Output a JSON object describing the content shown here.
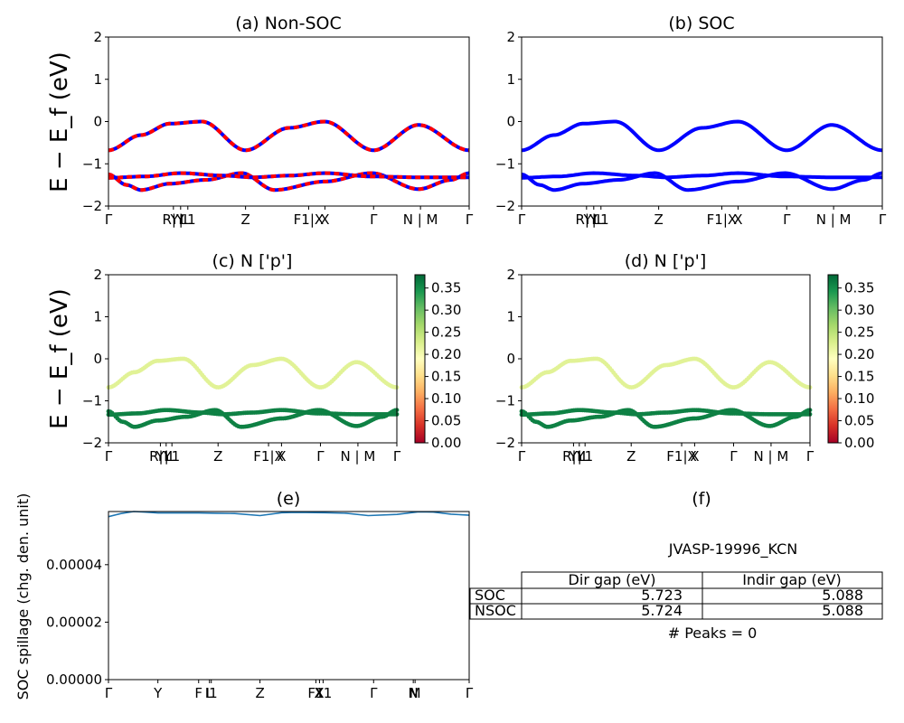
{
  "chart_data": [
    {
      "id": "a",
      "type": "line",
      "title": "(a) Non-SOC",
      "ylabel": "E − E_f (eV)",
      "ylim": [
        -2,
        2
      ],
      "yticks": [
        "−2",
        "−1",
        "0",
        "1",
        "2"
      ],
      "xticks": [
        "Γ",
        "R|Y",
        "Y|L",
        "L1",
        "Z",
        "F1|X",
        "X",
        "Γ",
        "N | M",
        "Γ"
      ],
      "series_colors": [
        "#ff0000",
        "#0000ff"
      ],
      "band_colors": {
        "valence": "#ff0000",
        "core": "#ff0000"
      }
    },
    {
      "id": "b",
      "type": "line",
      "title": "(b) SOC",
      "ylim": [
        -2,
        2
      ],
      "yticks": [
        "−2",
        "−1",
        "0",
        "1",
        "2"
      ],
      "xticks": [
        "Γ",
        "R|Y",
        "Y|L",
        "L1",
        "Z",
        "F1|X",
        "X",
        "Γ",
        "N | M",
        "Γ"
      ],
      "series_colors": [
        "#0000ff"
      ]
    },
    {
      "id": "c",
      "type": "scatter",
      "title": "(c)  N ['p']",
      "ylabel": "E − E_f (eV)",
      "ylim": [
        -2,
        2
      ],
      "yticks": [
        "−2",
        "−1",
        "0",
        "1",
        "2"
      ],
      "xticks": [
        "Γ",
        "R|Y",
        "Y|L",
        "L1",
        "Z",
        "F1|X",
        "X",
        "Γ",
        "N | M",
        "Γ"
      ],
      "colorbar": {
        "min": 0.0,
        "max": 0.38,
        "ticks": [
          "0.00",
          "0.05",
          "0.10",
          "0.15",
          "0.20",
          "0.25",
          "0.30",
          "0.35"
        ],
        "colormap": "RdYlGn"
      },
      "band_weights": {
        "valence": 0.22,
        "core": 0.36
      }
    },
    {
      "id": "d",
      "type": "scatter",
      "title": "(d) N ['p']",
      "ylim": [
        -2,
        2
      ],
      "yticks": [
        "−2",
        "−1",
        "0",
        "1",
        "2"
      ],
      "xticks": [
        "Γ",
        "R|Y",
        "Y|L",
        "L1",
        "Z",
        "F1|X",
        "X",
        "Γ",
        "N | M",
        "Γ"
      ],
      "colorbar": {
        "min": 0.0,
        "max": 0.38,
        "ticks": [
          "0.00",
          "0.05",
          "0.10",
          "0.15",
          "0.20",
          "0.25",
          "0.30",
          "0.35"
        ],
        "colormap": "RdYlGn"
      },
      "band_weights": {
        "valence": 0.22,
        "core": 0.36
      }
    },
    {
      "id": "e",
      "type": "line",
      "title": "(e)",
      "ylabel": "SOC spillage (chg. den. unit)",
      "ylim": [
        0,
        5.85e-05
      ],
      "yticks": [
        {
          "value": 0,
          "label": "0.00000"
        },
        {
          "value": 2e-05,
          "label": "0.00002"
        },
        {
          "value": 4e-05,
          "label": "0.00004"
        }
      ],
      "xticks": [
        "Γ",
        "Y",
        "F",
        "L",
        "I1",
        "Z",
        "F1",
        "X",
        "X1",
        "Γ",
        "N",
        "M",
        "Γ"
      ],
      "series_color": "#1f77b4",
      "x": [
        0,
        0.035,
        0.07,
        0.1,
        0.137,
        0.2,
        0.25,
        0.3,
        0.35,
        0.42,
        0.48,
        0.52,
        0.6,
        0.66,
        0.72,
        0.8,
        0.86,
        0.9,
        0.95,
        1.0
      ],
      "values": [
        5.67e-05,
        5.78e-05,
        5.85e-05,
        5.83e-05,
        5.8e-05,
        5.8e-05,
        5.8e-05,
        5.79e-05,
        5.78e-05,
        5.71e-05,
        5.81e-05,
        5.82e-05,
        5.81e-05,
        5.79e-05,
        5.71e-05,
        5.75e-05,
        5.84e-05,
        5.83e-05,
        5.76e-05,
        5.72e-05
      ]
    }
  ],
  "table_panel": {
    "title": "(f)",
    "subtitle": "JVASP-19996_KCN",
    "columns": [
      "Dir gap (eV)",
      "Indir gap (eV)"
    ],
    "rows": [
      {
        "label": "SOC",
        "dir": "5.723",
        "indir": "5.088"
      },
      {
        "label": "NSOC",
        "dir": "5.724",
        "indir": "5.088"
      }
    ],
    "peaks": "# Peaks = 0"
  }
}
